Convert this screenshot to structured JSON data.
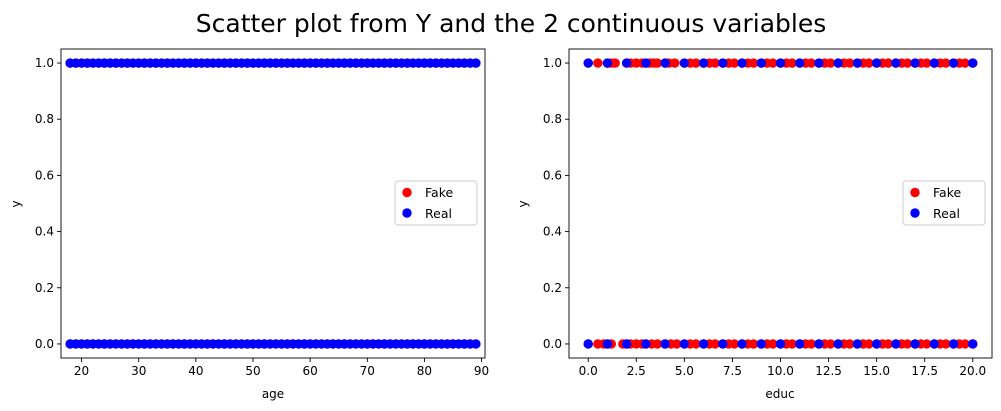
{
  "figure": {
    "suptitle": "Scatter plot from Y and the 2 continuous variables"
  },
  "colors": {
    "fake": "#ff0000",
    "real": "#0000ff",
    "axes": "#000000"
  },
  "chart_data": [
    {
      "type": "scatter",
      "xlabel": "age",
      "ylabel": "y",
      "xlim": [
        16.4,
        90.6
      ],
      "ylim": [
        -0.05,
        1.05
      ],
      "xticks": [
        20,
        30,
        40,
        50,
        60,
        70,
        80,
        90
      ],
      "xtick_labels": [
        "20",
        "30",
        "40",
        "50",
        "60",
        "70",
        "80",
        "90"
      ],
      "yticks": [
        0.0,
        0.2,
        0.4,
        0.6,
        0.8,
        1.0
      ],
      "ytick_labels": [
        "0.0",
        "0.2",
        "0.4",
        "0.6",
        "0.8",
        "1.0"
      ],
      "legend": {
        "position": "center right",
        "entries": [
          "Fake",
          "Real"
        ]
      },
      "grid": false,
      "series": [
        {
          "name": "Fake",
          "color": "#ff0000",
          "x_range": [
            18,
            89
          ],
          "x_step": 1,
          "y_values": [
            0,
            1
          ]
        },
        {
          "name": "Real",
          "color": "#0000ff",
          "x_range": [
            18,
            89
          ],
          "x_step": 1,
          "y_values": [
            0,
            1
          ]
        }
      ]
    },
    {
      "type": "scatter",
      "xlabel": "educ",
      "ylabel": "y",
      "xlim": [
        -1.0,
        21.0
      ],
      "ylim": [
        -0.05,
        1.05
      ],
      "xticks": [
        0,
        2.5,
        5,
        7.5,
        10,
        12.5,
        15,
        17.5,
        20
      ],
      "xtick_labels": [
        "0.0",
        "2.5",
        "5.0",
        "7.5",
        "10.0",
        "12.5",
        "15.0",
        "17.5",
        "20.0"
      ],
      "yticks": [
        0.0,
        0.2,
        0.4,
        0.6,
        0.8,
        1.0
      ],
      "ytick_labels": [
        "0.0",
        "0.2",
        "0.4",
        "0.6",
        "0.8",
        "1.0"
      ],
      "legend": {
        "position": "center right",
        "entries": [
          "Fake",
          "Real"
        ]
      },
      "grid": false,
      "series": [
        {
          "name": "Fake",
          "color": "#ff0000",
          "y1_x": [
            0,
            0.5,
            1,
            1.2,
            1.4,
            2,
            2.2,
            2.5,
            2.8,
            3,
            3.2,
            3.4,
            3.6,
            4,
            4.2,
            4.5,
            5,
            5.3,
            5.6,
            6,
            6.3,
            6.6,
            7,
            7.3,
            7.6,
            8,
            8.3,
            8.6,
            9,
            9.3,
            9.6,
            10,
            10.3,
            10.6,
            11,
            11.3,
            11.6,
            12,
            12.3,
            12.6,
            13,
            13.3,
            13.6,
            14,
            14.3,
            14.6,
            15,
            15.3,
            15.6,
            16,
            16.3,
            16.6,
            17,
            17.3,
            17.6,
            18,
            18.3,
            18.6,
            19,
            19.3,
            19.6,
            20
          ],
          "y0_x": [
            0,
            0.5,
            0.8,
            1,
            1.2,
            1.8,
            2,
            2.2,
            2.5,
            2.8,
            3,
            3.3,
            3.6,
            4,
            4.3,
            4.6,
            5,
            5.3,
            5.6,
            6,
            6.3,
            6.6,
            7,
            7.3,
            7.6,
            8,
            8.3,
            8.6,
            9,
            9.3,
            9.6,
            10,
            10.3,
            10.6,
            11,
            11.3,
            11.6,
            12,
            12.3,
            12.6,
            13,
            13.3,
            13.6,
            14,
            14.3,
            14.6,
            15,
            15.3,
            15.6,
            16,
            16.3,
            16.6,
            17,
            17.3,
            17.6,
            18,
            18.3,
            18.6,
            19,
            19.3,
            19.6,
            20
          ]
        },
        {
          "name": "Real",
          "color": "#0000ff",
          "y1_x": [
            0,
            1,
            2,
            3,
            4,
            5,
            6,
            7,
            8,
            9,
            10,
            11,
            12,
            13,
            14,
            15,
            16,
            17,
            18,
            19,
            20
          ],
          "y0_x": [
            0,
            1,
            2,
            3,
            4,
            5,
            6,
            7,
            8,
            9,
            10,
            11,
            12,
            13,
            14,
            15,
            16,
            17,
            18,
            19,
            20
          ]
        }
      ]
    }
  ]
}
